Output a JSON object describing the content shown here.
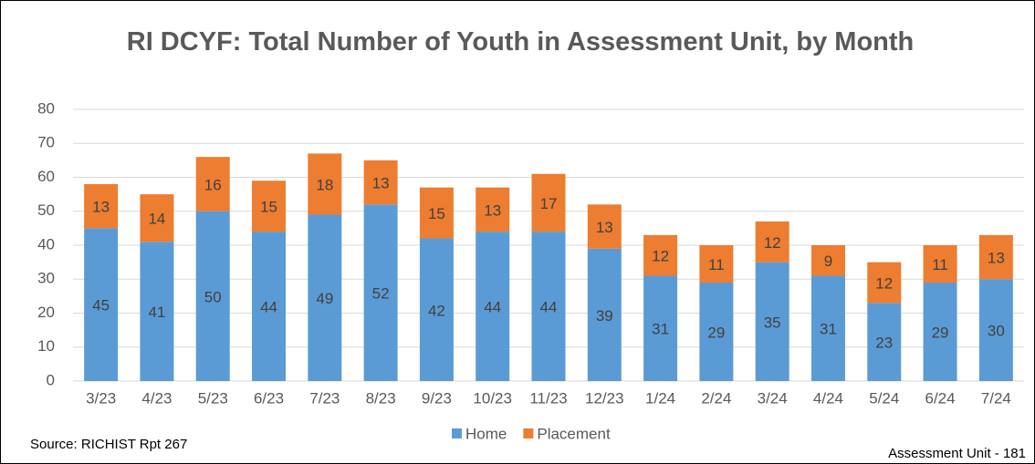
{
  "chart_data": {
    "type": "stacked_bar",
    "title": "RI DCYF: Total Number of Youth in Assessment Unit, by Month",
    "categories": [
      "3/23",
      "4/23",
      "5/23",
      "6/23",
      "7/23",
      "8/23",
      "9/23",
      "10/23",
      "11/23",
      "12/23",
      "1/24",
      "2/24",
      "3/24",
      "4/24",
      "5/24",
      "6/24",
      "7/24"
    ],
    "series": [
      {
        "name": "Home",
        "color": "#5b9bd5",
        "values": [
          45,
          41,
          50,
          44,
          49,
          52,
          42,
          44,
          44,
          39,
          31,
          29,
          35,
          31,
          23,
          29,
          30
        ]
      },
      {
        "name": "Placement",
        "color": "#ed7d31",
        "values": [
          13,
          14,
          16,
          15,
          18,
          13,
          15,
          13,
          17,
          13,
          12,
          11,
          12,
          9,
          12,
          11,
          13
        ]
      }
    ],
    "ylim": [
      0,
      80
    ],
    "yticks": [
      0,
      10,
      20,
      30,
      40,
      50,
      60,
      70,
      80
    ],
    "grid": true,
    "legend": "bottom",
    "annotations": [
      "Source: RICHIST Rpt 267",
      "Assessment Unit - 181"
    ]
  }
}
